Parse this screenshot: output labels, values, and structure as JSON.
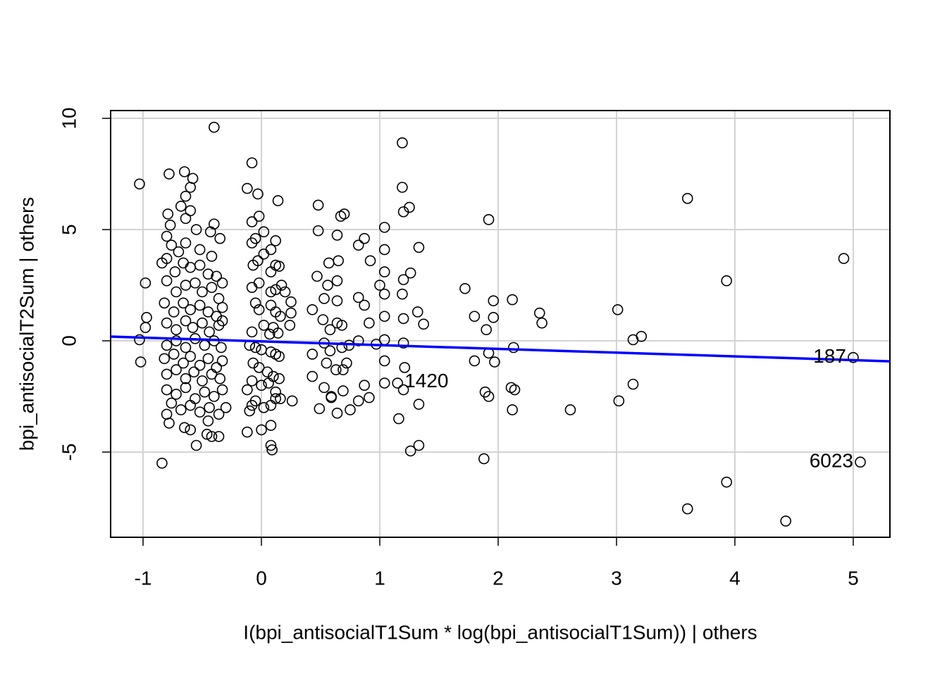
{
  "chart_data": {
    "type": "scatter",
    "xlabel": "I(bpi_antisocialT1Sum * log(bpi_antisocialT1Sum)) | others",
    "ylabel": "bpi_antisocialT2Sum  | others",
    "xlim": [
      -1.274,
      5.31
    ],
    "ylim": [
      -8.83,
      10.35
    ],
    "xticks": [
      -1,
      0,
      1,
      2,
      3,
      4,
      5
    ],
    "yticks": [
      -5,
      0,
      5,
      10
    ],
    "grid": true,
    "point_color": "#000000",
    "x": [
      -1.03,
      -0.98,
      -0.97,
      -0.98,
      -1.03,
      -1.02,
      -0.84,
      -0.4,
      -0.08,
      -0.12,
      -0.03,
      0.14,
      0.48,
      0.7,
      1.19,
      1.19,
      1.25,
      1.2,
      1.04,
      1.33,
      0.87,
      1.04,
      1.72,
      1.8,
      1.96,
      2.12,
      1.92,
      1.9,
      1.96,
      2.35,
      2.37,
      3.01,
      3.14,
      3.21,
      3.6,
      3.93,
      4.92,
      5.0,
      1.8,
      1.97,
      1.92,
      2.13,
      1.89,
      1.92,
      2.11,
      2.14,
      2.12,
      2.61,
      3.02,
      3.14,
      1.88,
      3.6,
      3.93,
      4.43,
      5.06,
      1.16,
      1.26,
      1.33,
      1.33,
      1.2,
      1.15,
      1.04,
      1.37,
      1.32,
      1.26,
      1.2,
      1.19,
      1.2,
      1.04,
      1.04,
      1.04,
      1.0,
      0.97,
      1.04,
      1.04,
      1.2,
      1.21,
      0.82,
      0.82,
      0.92,
      0.87,
      0.91,
      0.82,
      0.87,
      0.82,
      0.91,
      0.75,
      0.64,
      0.59,
      0.53,
      0.49,
      0.43,
      0.43,
      0.55,
      0.63,
      0.68,
      0.74,
      0.53,
      0.58,
      0.68,
      0.64,
      0.58,
      0.52,
      0.43,
      0.53,
      0.64,
      0.47,
      0.56,
      0.64,
      0.57,
      0.65,
      0.48,
      0.64,
      0.67,
      0.59,
      0.69,
      0.69,
      0.72,
      -0.1,
      -0.12,
      -0.1,
      -0.12,
      -0.08,
      -0.05,
      -0.08,
      -0.02,
      0.02,
      0.02,
      0.08,
      0.12,
      -0.07,
      -0.03,
      0.08,
      0.12,
      0.15,
      -0.08,
      -0.02,
      0.08,
      0.12,
      0.17,
      -0.05,
      -0.02,
      0.08,
      0.12,
      0.16,
      -0.08,
      0.02,
      0.07,
      0.1,
      0.14,
      -0.05,
      0.0,
      0.08,
      0.12,
      0.15,
      -0.07,
      -0.02,
      0.05,
      0.1,
      0.15,
      -0.08,
      0.0,
      0.06,
      0.12,
      0.16,
      -0.05,
      -0.08,
      0.02,
      0.08,
      0.12,
      0.0,
      0.08,
      0.08,
      0.09,
      0.2,
      0.25,
      0.25,
      0.26,
      0.24,
      -0.78,
      -0.65,
      -0.58,
      -0.6,
      -0.64,
      -0.68,
      -0.79,
      -0.6,
      -0.64,
      -0.55,
      -0.4,
      -0.43,
      -0.35,
      -0.77,
      -0.8,
      -0.76,
      -0.7,
      -0.64,
      -0.52,
      -0.42,
      -0.84,
      -0.8,
      -0.73,
      -0.66,
      -0.6,
      -0.52,
      -0.45,
      -0.38,
      -0.33,
      -0.8,
      -0.72,
      -0.64,
      -0.56,
      -0.5,
      -0.42,
      -0.36,
      -0.82,
      -0.74,
      -0.66,
      -0.6,
      -0.52,
      -0.45,
      -0.38,
      -0.33,
      -0.8,
      -0.72,
      -0.64,
      -0.58,
      -0.5,
      -0.44,
      -0.36,
      -0.33,
      -0.8,
      -0.72,
      -0.64,
      -0.56,
      -0.48,
      -0.4,
      -0.34,
      -0.82,
      -0.74,
      -0.66,
      -0.6,
      -0.52,
      -0.45,
      -0.38,
      -0.33,
      -0.8,
      -0.72,
      -0.64,
      -0.57,
      -0.5,
      -0.42,
      -0.35,
      -0.8,
      -0.72,
      -0.64,
      -0.56,
      -0.48,
      -0.4,
      -0.33,
      -0.8,
      -0.76,
      -0.68,
      -0.6,
      -0.52,
      -0.44,
      -0.36,
      -0.3,
      -0.78,
      -0.65,
      -0.6,
      -0.55,
      -0.46,
      -0.42,
      -0.36,
      -0.45
    ],
    "values": [
      7.05,
      2.6,
      1.05,
      0.6,
      0.05,
      -0.95,
      -5.5,
      9.6,
      8.0,
      6.85,
      6.6,
      6.3,
      6.1,
      5.7,
      8.9,
      6.9,
      6.0,
      5.8,
      5.1,
      4.2,
      4.6,
      4.1,
      2.35,
      1.1,
      1.8,
      1.85,
      5.45,
      0.5,
      1.05,
      1.25,
      0.8,
      1.4,
      0.05,
      0.2,
      6.4,
      2.7,
      3.7,
      -0.75,
      -0.9,
      -0.95,
      -0.55,
      -0.3,
      -2.3,
      -2.5,
      -2.1,
      -2.2,
      -3.1,
      -3.1,
      -2.7,
      -1.95,
      -5.3,
      -7.55,
      -6.35,
      -8.1,
      -5.45,
      -3.5,
      -4.95,
      -4.7,
      -2.85,
      -2.2,
      -1.9,
      -1.9,
      0.75,
      1.3,
      3.05,
      2.75,
      2.1,
      1.0,
      3.1,
      2.1,
      1.1,
      2.5,
      -0.15,
      -0.9,
      0.05,
      -0.1,
      -1.2,
      1.95,
      4.3,
      3.6,
      1.6,
      0.8,
      0.0,
      -2.0,
      -2.7,
      -2.55,
      -3.1,
      -3.25,
      -2.5,
      -2.1,
      -3.05,
      -1.6,
      -0.6,
      -1.0,
      -1.3,
      -0.3,
      -0.2,
      -0.1,
      -0.45,
      0.7,
      0.8,
      0.5,
      0.95,
      1.4,
      1.9,
      1.8,
      2.9,
      2.5,
      2.7,
      3.5,
      3.6,
      4.95,
      4.75,
      5.6,
      -2.55,
      -2.25,
      -1.3,
      -1.0,
      -0.2,
      -2.2,
      -3.15,
      -4.1,
      5.35,
      4.6,
      4.4,
      5.6,
      4.9,
      3.9,
      4.1,
      4.5,
      3.4,
      3.6,
      3.1,
      3.4,
      3.35,
      2.4,
      2.6,
      2.2,
      2.3,
      2.5,
      1.7,
      1.4,
      1.6,
      1.3,
      1.1,
      0.4,
      0.7,
      0.3,
      0.6,
      0.35,
      -0.3,
      -0.4,
      -0.5,
      -0.6,
      -0.7,
      -1.0,
      -1.2,
      -1.4,
      -1.6,
      -1.7,
      -1.8,
      -2.0,
      -1.9,
      -2.3,
      -2.6,
      -2.7,
      -2.9,
      -3.0,
      -2.9,
      -2.6,
      -4.0,
      -3.8,
      -4.7,
      -4.9,
      2.2,
      1.75,
      1.25,
      -2.7,
      0.7,
      7.5,
      7.6,
      7.3,
      6.9,
      6.5,
      6.05,
      5.7,
      5.85,
      5.5,
      5.0,
      5.25,
      4.9,
      4.6,
      5.2,
      4.7,
      4.3,
      4.0,
      4.4,
      4.1,
      3.8,
      3.5,
      3.7,
      3.1,
      3.5,
      3.3,
      3.4,
      3.0,
      2.9,
      2.6,
      2.7,
      2.2,
      2.5,
      2.6,
      2.2,
      2.4,
      1.9,
      1.7,
      1.3,
      1.7,
      1.4,
      1.6,
      1.3,
      1.1,
      1.5,
      0.8,
      0.5,
      0.9,
      0.6,
      0.8,
      0.4,
      0.7,
      0.9,
      -0.2,
      0.0,
      -0.3,
      0.1,
      -0.2,
      0.0,
      -0.3,
      -0.8,
      -0.6,
      -1.0,
      -0.7,
      -1.1,
      -0.8,
      -1.2,
      -0.9,
      -1.5,
      -1.3,
      -1.7,
      -1.4,
      -1.8,
      -1.5,
      -1.7,
      -2.2,
      -2.4,
      -2.1,
      -2.6,
      -2.3,
      -2.5,
      -2.2,
      -3.3,
      -2.8,
      -3.1,
      -2.9,
      -3.2,
      -3.0,
      -3.3,
      -3.0,
      -3.7,
      -3.9,
      -4.0,
      -4.7,
      -4.2,
      -4.3,
      -4.3,
      -3.6
    ],
    "fit_line": {
      "x": [
        -1.274,
        5.31
      ],
      "values": [
        0.19,
        -0.92
      ],
      "color": "#0000ff"
    },
    "annotations": [
      {
        "text": "187",
        "x": 5.0,
        "y": -0.75,
        "pos": "left"
      },
      {
        "text": "1420",
        "x": 1.15,
        "y": -1.85,
        "pos": "right"
      },
      {
        "text": "6023",
        "x": 5.06,
        "y": -5.45,
        "pos": "left"
      }
    ]
  }
}
